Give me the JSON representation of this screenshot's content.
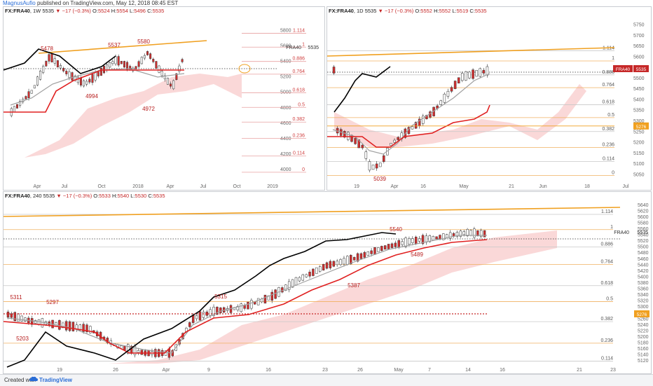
{
  "header": {
    "author": "MagnusAufio",
    "published": "published on TradingView.com, May 12, 2018 08:45 EST"
  },
  "footer": {
    "created": "Created with",
    "brand": "TradingView"
  },
  "chart_data": [
    {
      "type": "line",
      "panel": "weekly",
      "symbol": "FX:FRA40",
      "interval": "1W",
      "quote": {
        "last": "5535",
        "change": "−17 (−0.3%)",
        "o": "5524",
        "h": "5554",
        "l": "5496",
        "c": "5535"
      },
      "labels": {
        "o": "O:",
        "h": "H:",
        "l": "L:",
        "c": "C:"
      },
      "x_ticks": [
        "Apr",
        "Jul",
        "Oct",
        "2018",
        "Apr",
        "Jul",
        "Oct",
        "2019"
      ],
      "y_ticks": [
        4000,
        4200,
        4400,
        4600,
        4800,
        5000,
        5200,
        5400,
        5600,
        5800
      ],
      "ylim": [
        3850,
        5900
      ],
      "fib_levels": [
        {
          "ratio": "1.114",
          "price": 5760
        },
        {
          "ratio": "1",
          "price": 5580
        },
        {
          "ratio": "0.886",
          "price": 5395
        },
        {
          "ratio": "0.764",
          "price": 5230
        },
        {
          "ratio": "0.618",
          "price": 4990
        },
        {
          "ratio": "0.5",
          "price": 4800
        },
        {
          "ratio": "0.382",
          "price": 4610
        },
        {
          "ratio": "0.236",
          "price": 4400
        },
        {
          "ratio": "0.114",
          "price": 4170
        },
        {
          "ratio": "0",
          "price": 3960
        }
      ],
      "annotations": [
        "5478",
        "5537",
        "5580",
        "4994",
        "4972"
      ],
      "price_tag": "FRA40",
      "price_tag_value": "5535"
    },
    {
      "type": "line",
      "panel": "daily",
      "symbol": "FX:FRA40",
      "interval": "1D",
      "quote": {
        "last": "5535",
        "change": "−17 (−0.3%)",
        "o": "5552",
        "h": "5552",
        "l": "5519",
        "c": "5535"
      },
      "labels": {
        "o": "O:",
        "h": "H:",
        "l": "L:",
        "c": "C:"
      },
      "x_ticks": [
        "19",
        "Apr",
        "16",
        "May",
        "21",
        "Jun",
        "18",
        "Jul"
      ],
      "y_ticks": [
        5050,
        5100,
        5150,
        5200,
        5250,
        5300,
        5350,
        5400,
        5450,
        5500,
        5550,
        5600,
        5650,
        5700,
        5750
      ],
      "ylim": [
        5020,
        5760
      ],
      "fib_levels": [
        {
          "ratio": "1.114",
          "price": 5628
        },
        {
          "ratio": "1",
          "price": 5580
        },
        {
          "ratio": "0.886",
          "price": 5515
        },
        {
          "ratio": "0.764",
          "price": 5455
        },
        {
          "ratio": "0.618",
          "price": 5375
        },
        {
          "ratio": "0.5",
          "price": 5315
        },
        {
          "ratio": "0.382",
          "price": 5250
        },
        {
          "ratio": "0.236",
          "price": 5175
        },
        {
          "ratio": "0.114",
          "price": 5110
        },
        {
          "ratio": "0",
          "price": 5045
        }
      ],
      "annotations": [
        "5039"
      ],
      "price_tag": "FRA40",
      "price_tag_value": "5535",
      "level_tag": "5276"
    },
    {
      "type": "line",
      "panel": "4h",
      "symbol": "FX:FRA40",
      "interval": "240",
      "quote": {
        "last": "5535",
        "change": "−17 (−0.3%)",
        "o": "5533",
        "h": "5540",
        "l": "5530",
        "c": "5535"
      },
      "labels": {
        "o": "O:",
        "h": "H:",
        "l": "L:",
        "c": "C:"
      },
      "x_ticks": [
        "19",
        "26",
        "Apr",
        "9",
        "16",
        "23",
        "26",
        "May",
        "7",
        "14",
        "16",
        "21",
        "23"
      ],
      "y_ticks": [
        5120,
        5140,
        5160,
        5180,
        5200,
        5220,
        5240,
        5260,
        5280,
        5300,
        5320,
        5340,
        5360,
        5380,
        5400,
        5420,
        5440,
        5460,
        5480,
        5500,
        5520,
        5540,
        5560,
        5580,
        5600,
        5620,
        5640
      ],
      "ylim": [
        5110,
        5650
      ],
      "fib_levels": [
        {
          "ratio": "1.114",
          "price": 5608
        },
        {
          "ratio": "1",
          "price": 5557
        },
        {
          "ratio": "0.886",
          "price": 5499
        },
        {
          "ratio": "0.764",
          "price": 5441
        },
        {
          "ratio": "0.618",
          "price": 5370
        },
        {
          "ratio": "0.5",
          "price": 5317
        },
        {
          "ratio": "0.382",
          "price": 5250
        },
        {
          "ratio": "0.236",
          "price": 5178
        },
        {
          "ratio": "0.114",
          "price": 5118
        }
      ],
      "annotations": [
        "5311",
        "5297",
        "5203",
        "5315",
        "5387",
        "5489",
        "5540"
      ],
      "price_tag": "FRA40",
      "price_tag_value": "5535",
      "level_tag": "5276"
    }
  ],
  "colors": {
    "trend": "#f0a020",
    "kijun": "#e02020",
    "tenkan": "#a0a0a0",
    "chikou": "#000000",
    "cloud": "#f8c8c8",
    "fib": "#d04040",
    "up": "#ffffff",
    "down": "#d32f2f"
  }
}
